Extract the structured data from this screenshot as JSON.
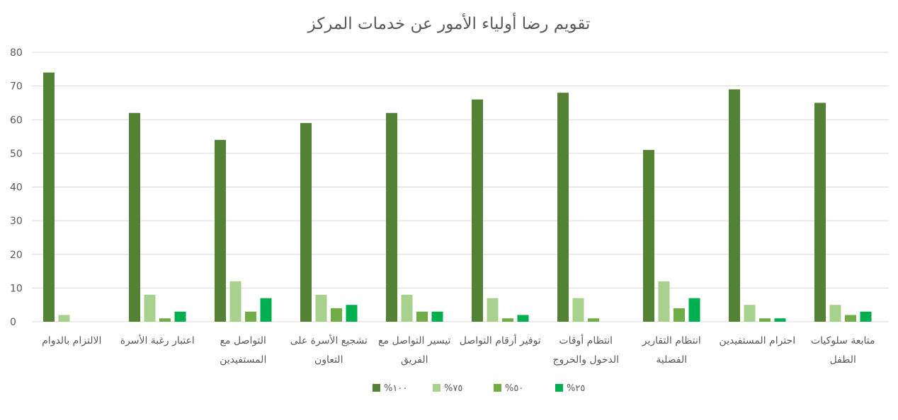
{
  "chart_data": {
    "type": "bar",
    "title": "تقويم رضا أولياء الأمور عن خدمات المركز",
    "xlabel": "",
    "ylabel": "",
    "ylim": [
      0,
      80
    ],
    "yticks": [
      0,
      10,
      20,
      30,
      40,
      50,
      60,
      70,
      80
    ],
    "grid": true,
    "legend_position": "bottom",
    "categories": [
      [
        "الالتزام بالدوام"
      ],
      [
        "اعتبار رغبة الأسرة"
      ],
      [
        "التواصل مع",
        "المستفيدين"
      ],
      [
        "تشجيع الأسرة على",
        "التعاون"
      ],
      [
        "تيسير التواصل مع",
        "الفريق"
      ],
      [
        "توفير أرقام التواصل"
      ],
      [
        "انتظام أوقات",
        "الدخول والخروج"
      ],
      [
        "انتظام التقارير",
        "الفصلية"
      ],
      [
        "احترام المستفيدين"
      ],
      [
        "متابعة سلوكيات",
        "الطفل"
      ]
    ],
    "series": [
      {
        "name": "%١٠٠",
        "color": "#548235",
        "values": [
          74,
          62,
          54,
          59,
          62,
          66,
          68,
          51,
          69,
          65
        ]
      },
      {
        "name": "%٧٥",
        "color": "#a9d18e",
        "values": [
          2,
          8,
          12,
          8,
          8,
          7,
          7,
          12,
          5,
          5
        ]
      },
      {
        "name": "%٥٠",
        "color": "#70ad47",
        "values": [
          0,
          1,
          3,
          4,
          3,
          1,
          1,
          4,
          1,
          2
        ]
      },
      {
        "name": "%٢٥",
        "color": "#00b050",
        "values": [
          0,
          3,
          7,
          5,
          3,
          2,
          0,
          7,
          1,
          3
        ]
      }
    ]
  }
}
